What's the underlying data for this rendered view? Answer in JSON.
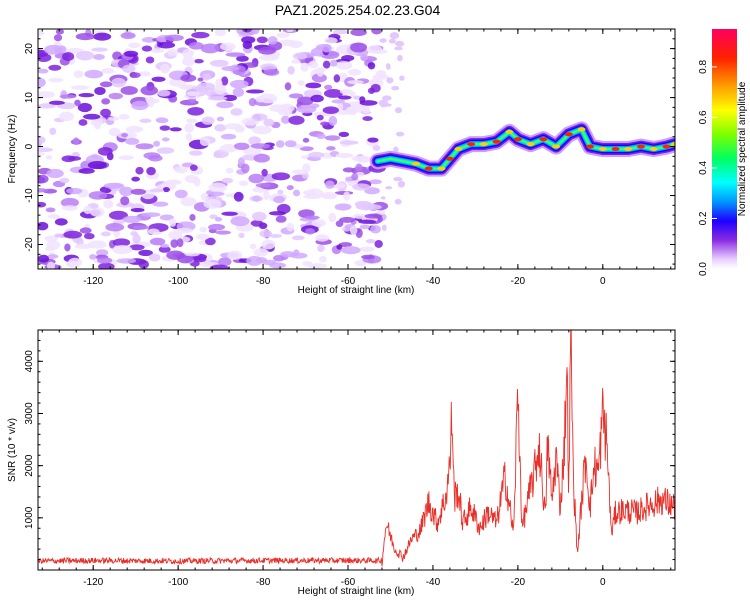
{
  "title": "PAZ1.2025.254.02.23.G04",
  "chart_data": [
    {
      "type": "heatmap",
      "xlabel": "Height of straight line (km)",
      "ylabel": "Frequency (Hz)",
      "xlim": [
        -133,
        17
      ],
      "ylim": [
        -25,
        24
      ],
      "xticks": [
        -120,
        -100,
        -80,
        -60,
        -40,
        -20,
        0
      ],
      "yticks": [
        -20,
        -10,
        0,
        10,
        20
      ],
      "xtick_labels": [
        "-120",
        "-100",
        "-80",
        "-60",
        "-40",
        "-20",
        "0"
      ],
      "ytick_labels": [
        "-20",
        "-10",
        "0",
        "10",
        "20"
      ],
      "colorbar": {
        "label": "Normalized spectral amplitude",
        "ticks": [
          "0.0",
          "0.2",
          "0.4",
          "0.6",
          "0.8"
        ],
        "range": [
          0,
          0.95
        ]
      },
      "ridge": {
        "x": [
          -53,
          -50,
          -47,
          -44,
          -41,
          -38,
          -36,
          -34,
          -31,
          -28,
          -25,
          -22,
          -20,
          -17,
          -14,
          -11,
          -8,
          -5,
          -3,
          0,
          3,
          6,
          9,
          12,
          15,
          17
        ],
        "y": [
          -3,
          -2.5,
          -3,
          -3.5,
          -4.5,
          -4.5,
          -2.5,
          -0.5,
          0.5,
          0.5,
          1.0,
          3.0,
          1.5,
          0.5,
          1.5,
          0.0,
          2.5,
          3.5,
          0.0,
          -0.5,
          -0.5,
          -0.5,
          0.0,
          -0.5,
          0.0,
          0.5
        ]
      }
    },
    {
      "type": "line",
      "xlabel": "Height of straight line (km)",
      "ylabel": "SNR (10 * v/v)",
      "xlim": [
        -133,
        17
      ],
      "ylim": [
        0,
        4600
      ],
      "xticks": [
        -120,
        -100,
        -80,
        -60,
        -40,
        -20,
        0
      ],
      "yticks": [
        1000,
        2000,
        3000,
        4000
      ],
      "xtick_labels": [
        "-120",
        "-100",
        "-80",
        "-60",
        "-40",
        "-20",
        "0"
      ],
      "ytick_labels": [
        "1000",
        "2000",
        "3000",
        "4000"
      ],
      "color": "#e8302a",
      "series": [
        {
          "x": [
            -133,
            -120,
            -100,
            -80,
            -60,
            -52,
            -51,
            -49,
            -47,
            -45,
            -43,
            -41,
            -39,
            -37,
            -36,
            -35.5,
            -35,
            -34,
            -33,
            -31,
            -29,
            -27,
            -25,
            -23,
            -21,
            -20,
            -19,
            -18,
            -16,
            -15,
            -13.5,
            -13,
            -12,
            -11,
            -10,
            -9,
            -8.5,
            -8,
            -7.5,
            -7,
            -6,
            -5,
            -4,
            -3,
            -2,
            -1,
            0,
            1,
            2,
            3,
            5,
            8,
            11,
            14,
            17
          ],
          "y": [
            150,
            160,
            150,
            160,
            160,
            160,
            900,
            400,
            250,
            600,
            750,
            1300,
            900,
            1400,
            2000,
            3100,
            1400,
            1500,
            900,
            1200,
            800,
            1100,
            900,
            1800,
            700,
            3450,
            800,
            1200,
            1900,
            2400,
            1000,
            2500,
            1300,
            2200,
            1200,
            2500,
            4000,
            1500,
            4600,
            1900,
            300,
            1300,
            2200,
            1200,
            2000,
            1900,
            3000,
            2400,
            700,
            1100,
            1150,
            1100,
            1250,
            1350,
            1200
          ]
        }
      ]
    }
  ]
}
